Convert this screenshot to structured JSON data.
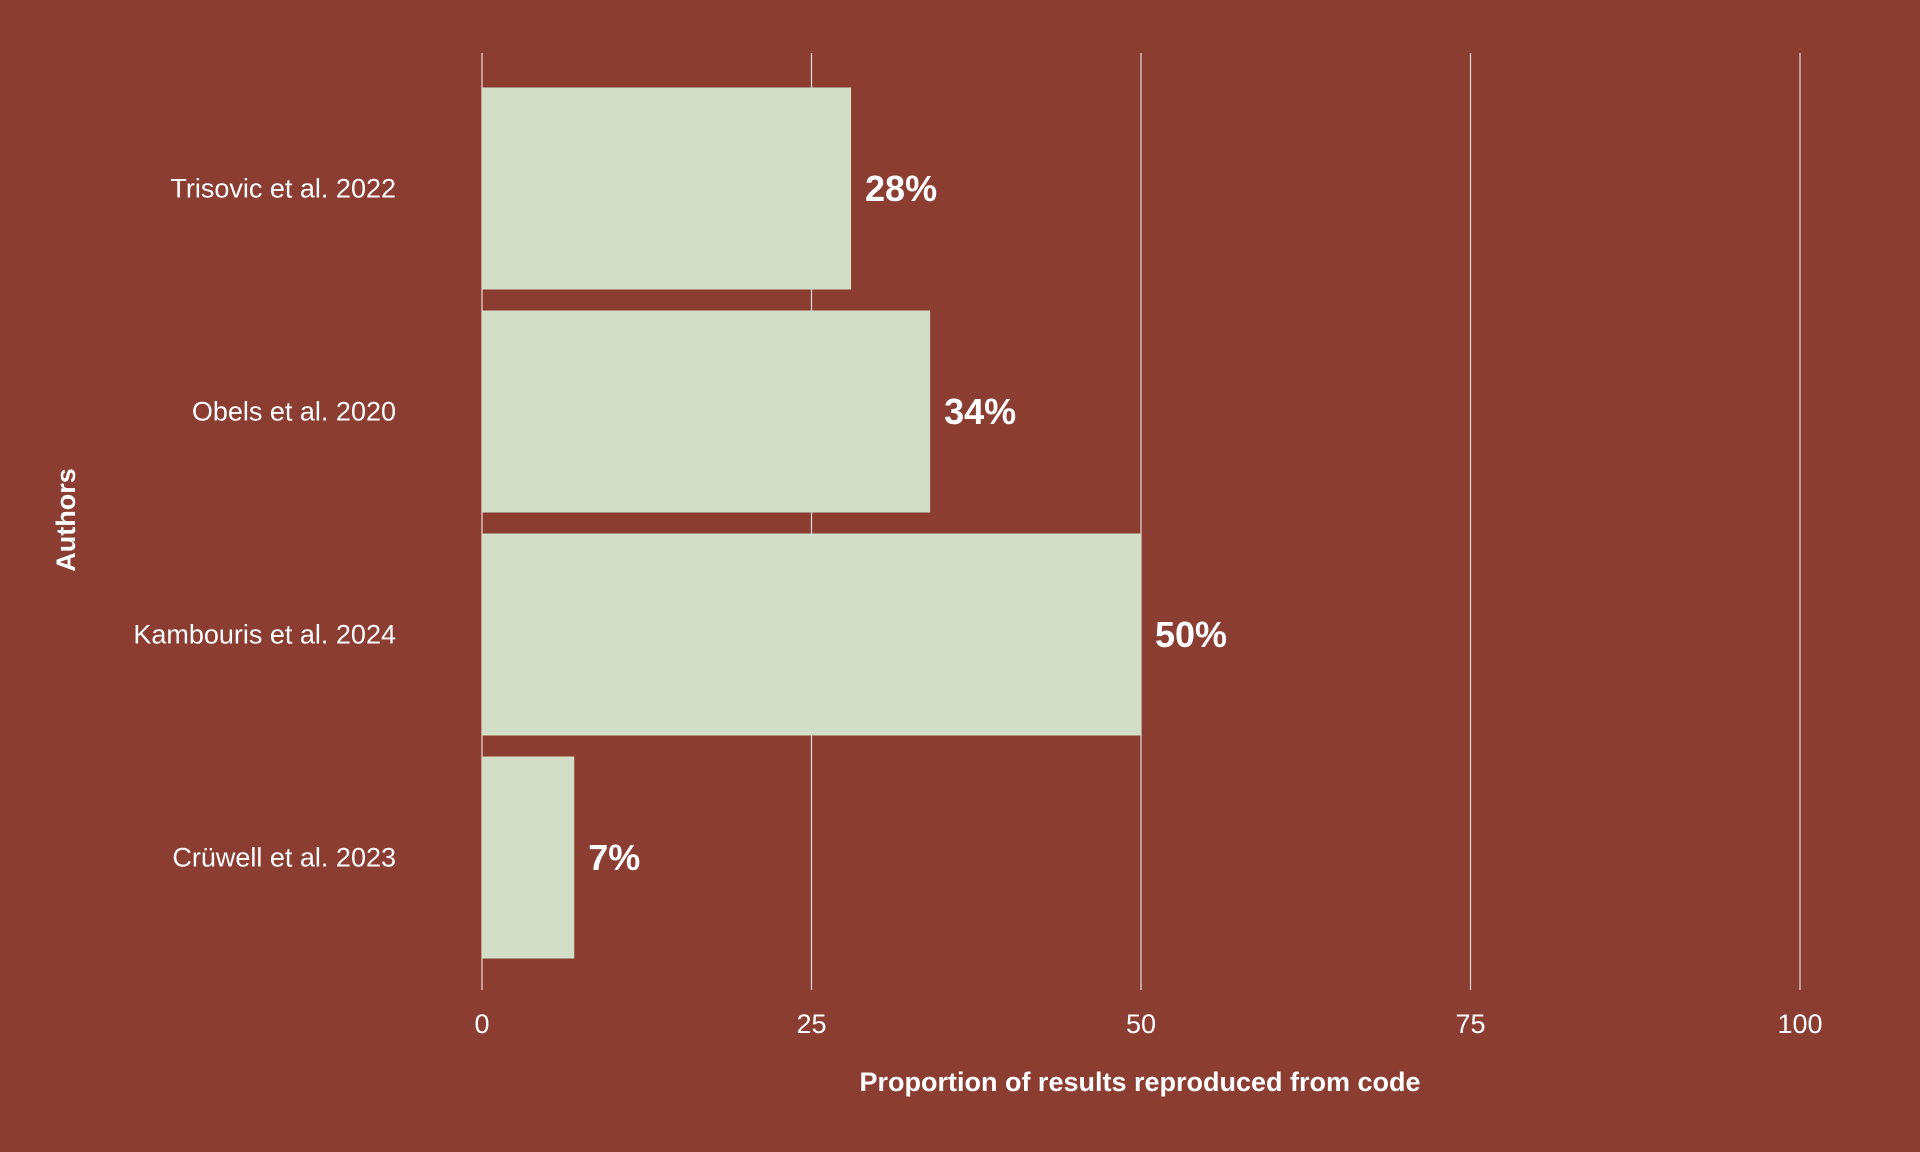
{
  "colors": {
    "background": "#8B3D31",
    "bar": "#D2DEC6",
    "grid": "#E8DDD9",
    "text": "#FFFFFF"
  },
  "chart_data": {
    "type": "bar",
    "orientation": "horizontal",
    "categories": [
      "Trisovic et al. 2022",
      "Obels et al. 2020",
      "Kambouris et al. 2024",
      "Crüwell et al. 2023"
    ],
    "values": [
      28,
      34,
      50,
      7
    ],
    "value_labels": [
      "28%",
      "34%",
      "50%",
      "7%"
    ],
    "xlabel": "Proportion of results reproduced from code",
    "ylabel": "Authors",
    "xlim": [
      0,
      100
    ],
    "xticks": [
      0,
      25,
      50,
      75,
      100
    ],
    "xtick_labels": [
      "0",
      "25",
      "50",
      "75",
      "100"
    ],
    "grid": "vertical major lines",
    "legend": "none"
  }
}
